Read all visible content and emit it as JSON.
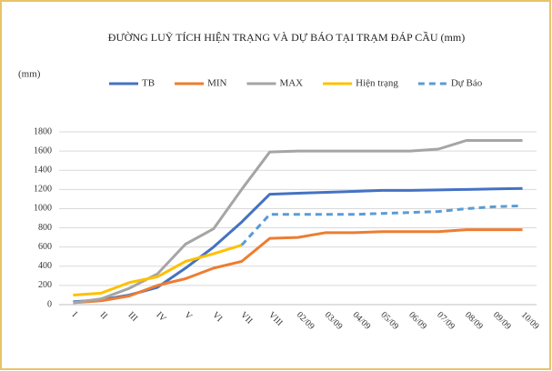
{
  "chart_data": {
    "type": "line",
    "title": "ĐƯỜNG LUỸ TÍCH HIỆN TRẠNG VÀ DỰ BÁO TẠI TRẠM ĐÁP CẦU (mm)",
    "y_label": "(mm)",
    "categories": [
      "I",
      "II",
      "III",
      "IV",
      "V",
      "VI",
      "VII",
      "VIII",
      "02/09",
      "03/09",
      "04/09",
      "05/09",
      "06/09",
      "07/09",
      "08/09",
      "09/09",
      "10/09"
    ],
    "series": [
      {
        "name": "TB",
        "color": "#4472c4",
        "dashed": false,
        "values": [
          30,
          50,
          100,
          180,
          380,
          600,
          860,
          1150,
          1160,
          1170,
          1180,
          1190,
          1190,
          1195,
          1200,
          1205,
          1210
        ]
      },
      {
        "name": "MIN",
        "color": "#ed7d31",
        "dashed": false,
        "values": [
          20,
          40,
          90,
          200,
          270,
          380,
          450,
          690,
          700,
          750,
          750,
          760,
          760,
          760,
          780,
          780,
          780
        ]
      },
      {
        "name": "MAX",
        "color": "#a5a5a5",
        "dashed": false,
        "values": [
          20,
          60,
          170,
          320,
          630,
          790,
          1200,
          1590,
          1600,
          1600,
          1600,
          1600,
          1600,
          1620,
          1710,
          1710,
          1710
        ]
      },
      {
        "name": "Hiện trạng",
        "color": "#ffc000",
        "dashed": false,
        "values": [
          100,
          120,
          230,
          290,
          450,
          530,
          620,
          null,
          null,
          null,
          null,
          null,
          null,
          null,
          null,
          null,
          null
        ]
      },
      {
        "name": "Dự Báo",
        "color": "#5b9bd5",
        "dashed": true,
        "values": [
          null,
          null,
          null,
          null,
          null,
          null,
          620,
          940,
          940,
          940,
          940,
          950,
          960,
          970,
          1000,
          1020,
          1030
        ]
      }
    ],
    "ylim": [
      0,
      1800
    ],
    "yticks": [
      0,
      200,
      400,
      600,
      800,
      1000,
      1200,
      1400,
      1600,
      1800
    ],
    "grid": true,
    "legend": "top"
  }
}
